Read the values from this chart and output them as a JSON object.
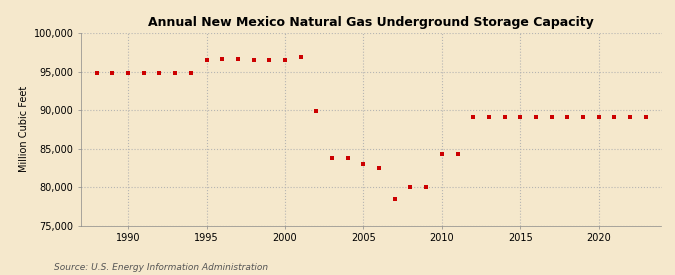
{
  "title": "Annual New Mexico Natural Gas Underground Storage Capacity",
  "ylabel": "Million Cubic Feet",
  "source": "Source: U.S. Energy Information Administration",
  "background_color": "#f5e8cc",
  "marker_color": "#cc0000",
  "grid_color": "#b0b0b0",
  "years": [
    1988,
    1989,
    1990,
    1991,
    1992,
    1993,
    1994,
    1995,
    1996,
    1997,
    1998,
    1999,
    2000,
    2001,
    2002,
    2003,
    2004,
    2005,
    2006,
    2007,
    2008,
    2009,
    2010,
    2011,
    2012,
    2013,
    2014,
    2015,
    2016,
    2017,
    2018,
    2019,
    2020,
    2021,
    2022,
    2023
  ],
  "values": [
    94800,
    94800,
    94800,
    94800,
    94800,
    94800,
    94800,
    96500,
    96600,
    96600,
    96500,
    96500,
    96500,
    96900,
    89900,
    83800,
    83800,
    83000,
    82500,
    78500,
    80000,
    80000,
    84300,
    84300,
    89100,
    89100,
    89100,
    89100,
    89100,
    89100,
    89100,
    89100,
    89100,
    89100,
    89100,
    89100
  ],
  "ylim": [
    75000,
    100000
  ],
  "yticks": [
    75000,
    80000,
    85000,
    90000,
    95000,
    100000
  ],
  "xticks": [
    1990,
    1995,
    2000,
    2005,
    2010,
    2015,
    2020
  ],
  "xlim": [
    1987,
    2024
  ]
}
